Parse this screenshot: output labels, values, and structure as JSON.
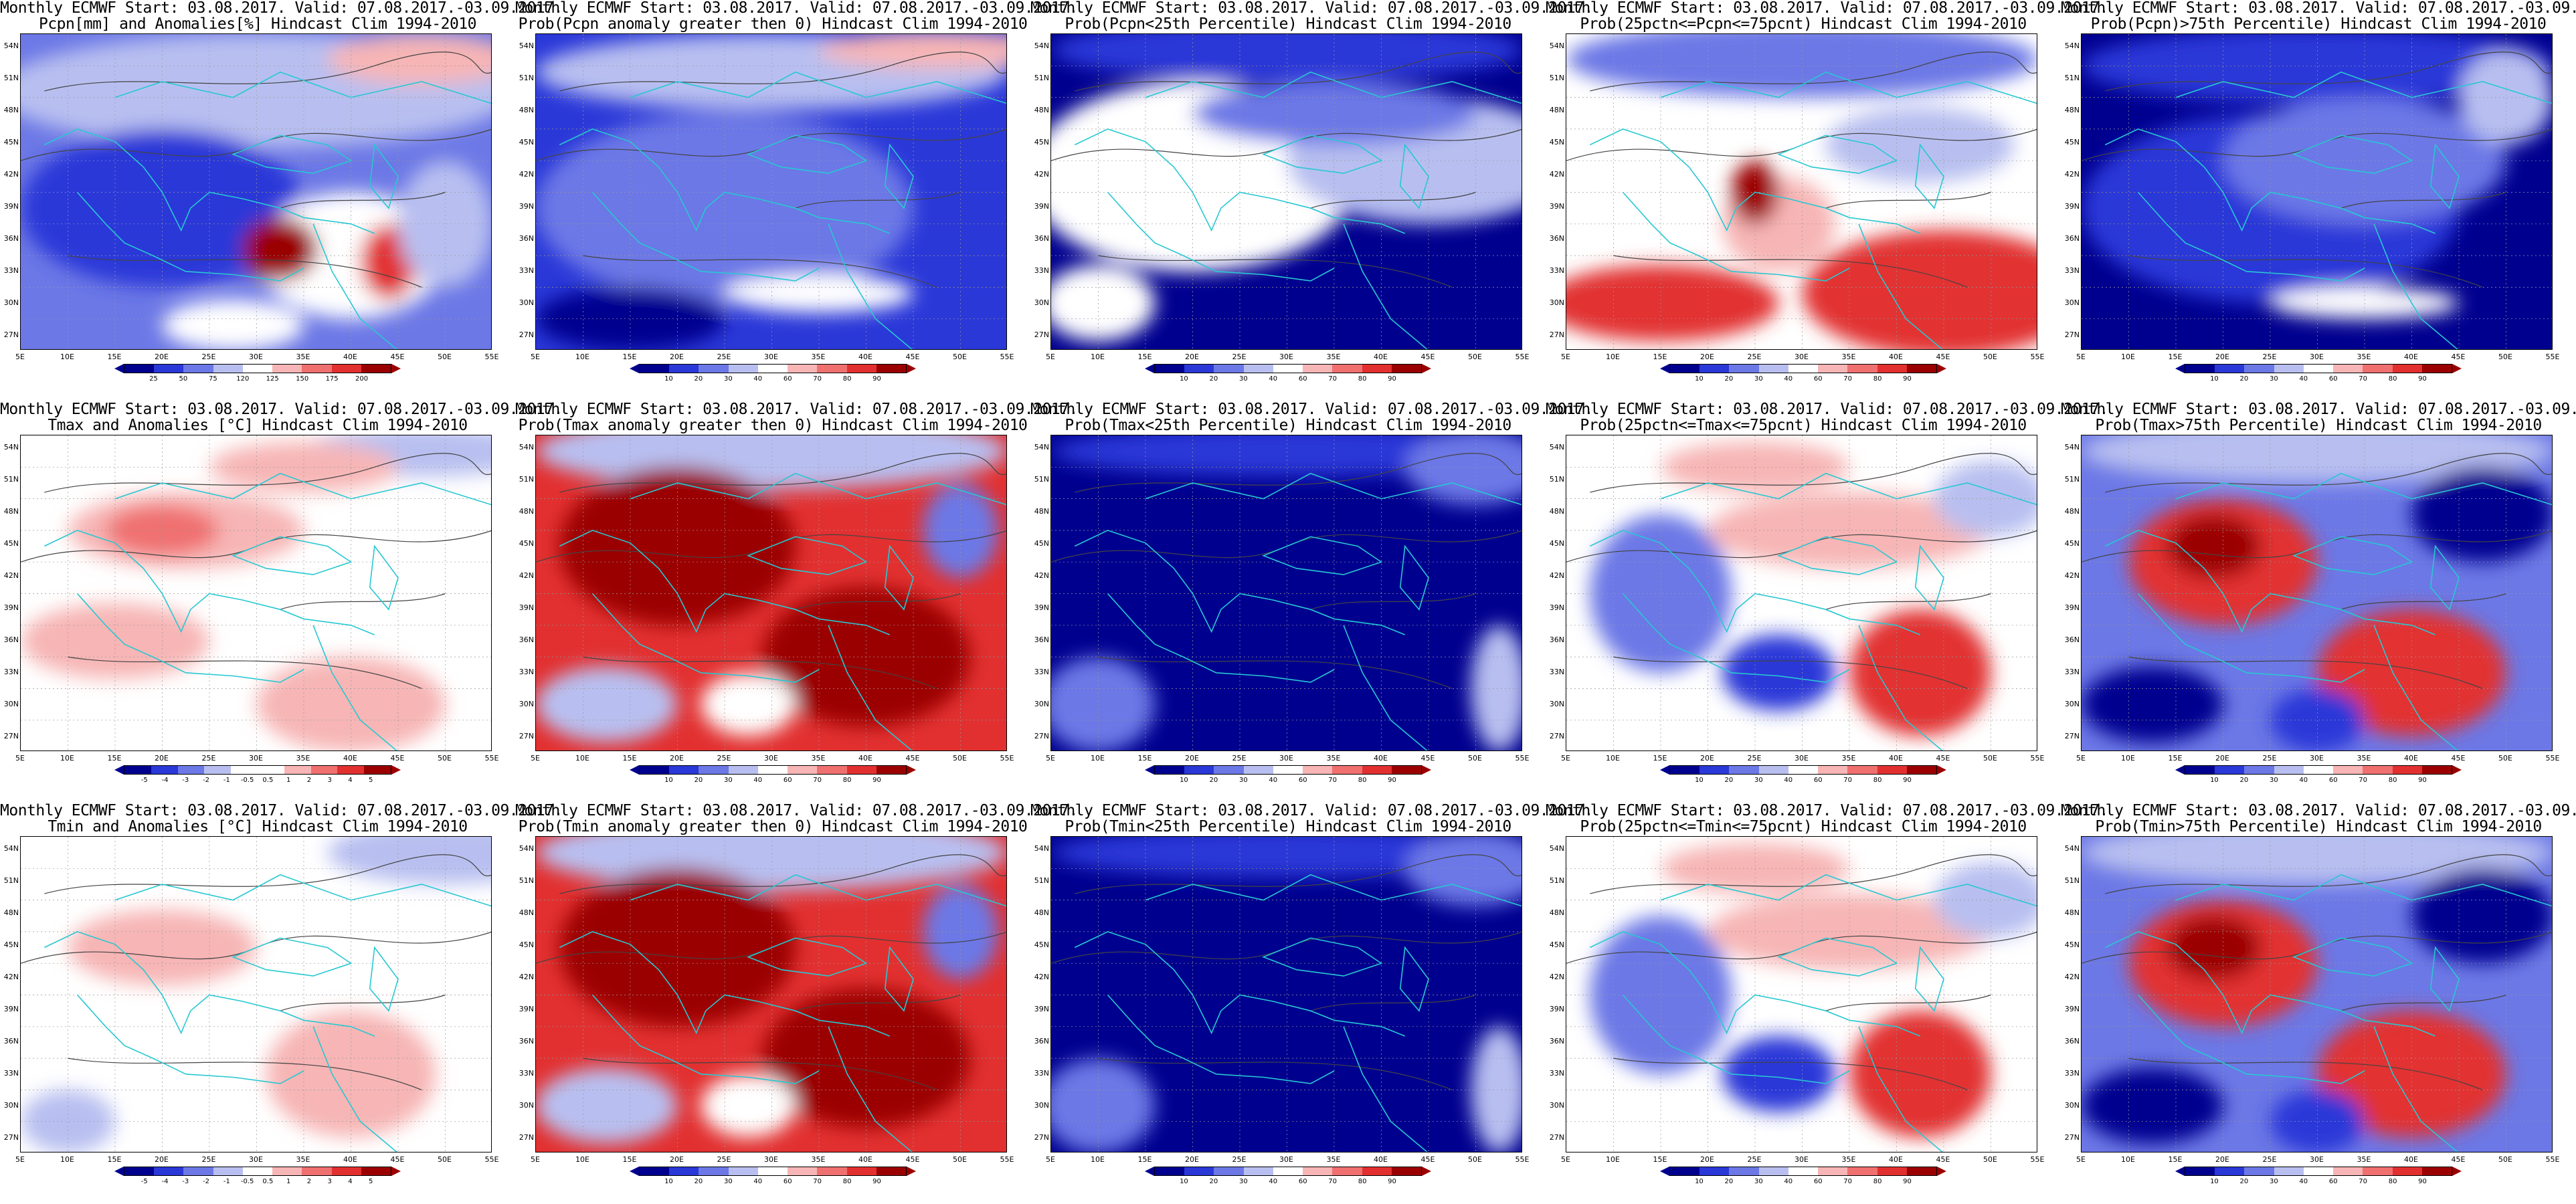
{
  "title_line1": "Monthly ECMWF Start: 03.08.2017. Valid: 07.08.2017.-03.09.2017.",
  "axes": {
    "lat_labels": [
      "54N",
      "51N",
      "48N",
      "45N",
      "42N",
      "39N",
      "36N",
      "33N",
      "30N",
      "27N"
    ],
    "lon_labels": [
      "5E",
      "10E",
      "15E",
      "20E",
      "25E",
      "30E",
      "35E",
      "40E",
      "45E",
      "50E",
      "55E"
    ]
  },
  "colorbars": {
    "pcpn_anom": [
      "25",
      "50",
      "75",
      "120",
      "125",
      "150",
      "175",
      "200"
    ],
    "t_anom": [
      "-5",
      "-4",
      "-3",
      "-2",
      "-1",
      "-0.5",
      "0.5",
      "1",
      "2",
      "3",
      "4",
      "5"
    ],
    "prob": [
      "10",
      "20",
      "30",
      "40",
      "60",
      "70",
      "80",
      "90"
    ]
  },
  "colors": {
    "red_dark": "#9b0000",
    "red": "#e23030",
    "red_mid": "#f07070",
    "red_light": "#f7b5b5",
    "white": "#ffffff",
    "blue_light": "#b8bff0",
    "blue_mid": "#6c78e6",
    "blue": "#2a38d8",
    "blue_dark": "#00008f",
    "coast": "#27c8d2",
    "contour": "#444444"
  },
  "panels": [
    {
      "row": 0,
      "col": 0,
      "subtitle": "Pcpn[mm] and Anomalies[%] Hindcast Clim 1994-2010",
      "colorbar": "pcpn_anom",
      "scheme": "pcpn_anom"
    },
    {
      "row": 0,
      "col": 1,
      "subtitle": "Prob(Pcpn anomaly greater then 0) Hindcast Clim 1994-2010",
      "colorbar": "prob",
      "scheme": "pcpn_pos"
    },
    {
      "row": 0,
      "col": 2,
      "subtitle": "Prob(Pcpn<25th Percentile) Hindcast Clim 1994-2010",
      "colorbar": "prob",
      "scheme": "pcpn_low"
    },
    {
      "row": 0,
      "col": 3,
      "subtitle": "Prob(25pctn<=Pcpn<=75pcnt) Hindcast Clim 1994-2010",
      "colorbar": "prob",
      "scheme": "pcpn_mid"
    },
    {
      "row": 0,
      "col": 4,
      "subtitle": "Prob(Pcpn)>75th Percentile) Hindcast Clim 1994-2010",
      "colorbar": "prob",
      "scheme": "pcpn_high"
    },
    {
      "row": 1,
      "col": 0,
      "subtitle": "Tmax and Anomalies [°C] Hindcast Clim 1994-2010",
      "colorbar": "t_anom",
      "scheme": "t_anom"
    },
    {
      "row": 1,
      "col": 1,
      "subtitle": "Prob(Tmax anomaly greater then 0) Hindcast Clim 1994-2010",
      "colorbar": "prob",
      "scheme": "t_pos"
    },
    {
      "row": 1,
      "col": 2,
      "subtitle": "Prob(Tmax<25th Percentile) Hindcast Clim 1994-2010",
      "colorbar": "prob",
      "scheme": "t_low"
    },
    {
      "row": 1,
      "col": 3,
      "subtitle": "Prob(25pctn<=Tmax<=75pcnt) Hindcast Clim 1994-2010",
      "colorbar": "prob",
      "scheme": "t_mid"
    },
    {
      "row": 1,
      "col": 4,
      "subtitle": "Prob(Tmax>75th Percentile) Hindcast Clim 1994-2010",
      "colorbar": "prob",
      "scheme": "t_high"
    },
    {
      "row": 2,
      "col": 0,
      "subtitle": "Tmin and Anomalies [°C] Hindcast Clim 1994-2010",
      "colorbar": "t_anom",
      "scheme": "tmin_anom"
    },
    {
      "row": 2,
      "col": 1,
      "subtitle": "Prob(Tmin anomaly greater then 0) Hindcast Clim 1994-2010",
      "colorbar": "prob",
      "scheme": "t_pos"
    },
    {
      "row": 2,
      "col": 2,
      "subtitle": "Prob(Tmin<25th Percentile) Hindcast Clim 1994-2010",
      "colorbar": "prob",
      "scheme": "t_low"
    },
    {
      "row": 2,
      "col": 3,
      "subtitle": "Prob(25pctn<=Tmin<=75pcnt) Hindcast Clim 1994-2010",
      "colorbar": "prob",
      "scheme": "t_mid"
    },
    {
      "row": 2,
      "col": 4,
      "subtitle": "Prob(Tmin>75th Percentile) Hindcast Clim 1994-2010",
      "colorbar": "prob",
      "scheme": "t_high"
    }
  ]
}
